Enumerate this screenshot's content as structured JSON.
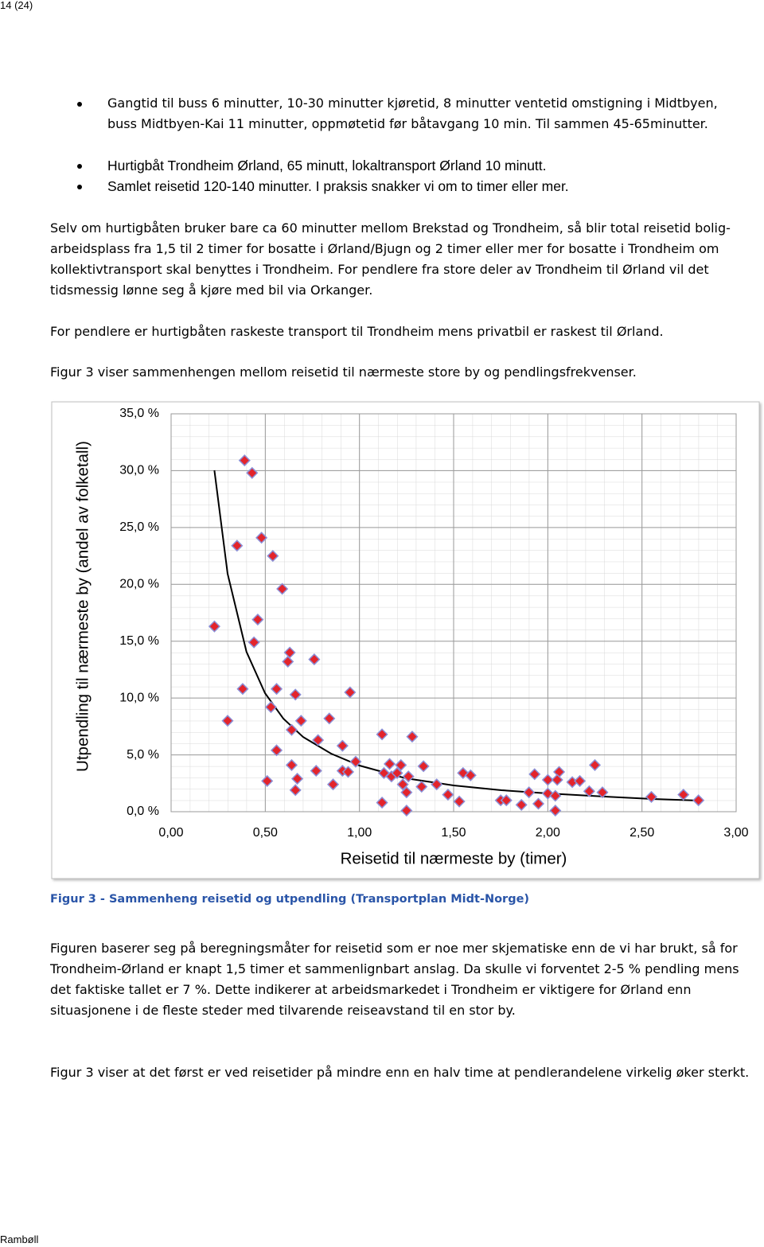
{
  "header": {
    "page": "14 (24)"
  },
  "bullets": [
    "Gangtid til buss 6 minutter, 10-30 minutter kjøretid, 8 minutter ventetid omstigning i Midtbyen, buss Midtbyen-Kai 11 minutter, oppmøtetid før båtavgang 10 min. Til sammen 45-65minutter.",
    "Hurtigbåt Trondheim Ørland, 65 minutt, lokaltransport Ørland 10 minutt.",
    "Samlet reisetid 120-140 minutter. I praksis snakker vi om to timer eller mer."
  ],
  "paragraphs": [
    "Selv om hurtigbåten bruker bare ca 60 minutter mellom Brekstad og Trondheim, så blir total reisetid bolig-arbeidsplass fra 1,5 til 2 timer for bosatte i Ørland/Bjugn og 2 timer eller mer for bosatte i Trondheim om kollektivtransport skal benyttes i Trondheim. For pendlere fra store deler av Trondheim til Ørland vil det tidsmessig lønne seg å kjøre med bil via Orkanger.",
    "For pendlere er hurtigbåten raskeste transport til Trondheim mens privatbil er raskest til Ørland.",
    "Figur 3 viser sammenhengen mellom reisetid til nærmeste store by og pendlingsfrekvenser."
  ],
  "chart_data": {
    "type": "scatter",
    "y_label": "Utpendling til nærmeste by (andel av folketall)",
    "x_label": "Reisetid til nærmeste by (timer)",
    "x": [
      0.39,
      0.43,
      0.35,
      0.48,
      0.54,
      0.59,
      0.23,
      0.46,
      0.44,
      0.63,
      0.62,
      0.76,
      0.38,
      0.56,
      0.66,
      0.95,
      0.3,
      0.53,
      0.69,
      0.84,
      0.64,
      1.12,
      1.28,
      0.56,
      0.78,
      0.91,
      0.98,
      0.64,
      0.77,
      0.91,
      0.94,
      0.67,
      0.51,
      0.86,
      0.66,
      1.16,
      1.22,
      1.34,
      1.13,
      1.17,
      1.2,
      1.26,
      1.23,
      1.33,
      1.25,
      1.41,
      1.47,
      1.55,
      1.59,
      1.53,
      1.12,
      1.25,
      1.75,
      1.78,
      1.86,
      1.9,
      1.93,
      1.95,
      2.0,
      2.06,
      2.05,
      2.0,
      2.04,
      2.04,
      2.13,
      2.17,
      2.25,
      2.22,
      2.29,
      2.55,
      2.72,
      2.8
    ],
    "values": [
      30.9,
      29.8,
      23.4,
      24.1,
      22.5,
      19.6,
      16.3,
      16.9,
      14.9,
      14.0,
      13.2,
      13.4,
      10.8,
      10.8,
      10.3,
      10.5,
      8.0,
      9.2,
      8.0,
      8.2,
      7.2,
      6.8,
      6.6,
      5.4,
      6.3,
      5.8,
      4.4,
      4.1,
      3.6,
      3.6,
      3.5,
      2.9,
      2.7,
      2.4,
      1.9,
      4.2,
      4.1,
      4.0,
      3.4,
      3.1,
      3.4,
      3.1,
      2.4,
      2.2,
      1.7,
      2.4,
      1.5,
      3.4,
      3.2,
      0.9,
      0.8,
      0.1,
      1.0,
      1.0,
      0.6,
      1.7,
      3.3,
      0.7,
      2.8,
      3.5,
      2.8,
      1.6,
      1.4,
      0.1,
      2.6,
      2.7,
      4.1,
      1.8,
      1.7,
      1.3,
      1.5,
      1.0
    ],
    "color": "#e3242b",
    "xlim": [
      0,
      3
    ],
    "ylim": [
      0,
      35
    ],
    "xticks": [
      {
        "value": 0,
        "label": "0,00"
      },
      {
        "value": 0.5,
        "label": "0,50"
      },
      {
        "value": 1,
        "label": "1,00"
      },
      {
        "value": 1.5,
        "label": "1,50"
      },
      {
        "value": 2,
        "label": "2,00"
      },
      {
        "value": 2.5,
        "label": "2,50"
      },
      {
        "value": 3,
        "label": "3,00"
      }
    ],
    "yticks": [
      {
        "value": 0,
        "label": "0,0 %"
      },
      {
        "value": 5,
        "label": "5,0 %"
      },
      {
        "value": 10,
        "label": "10,0 %"
      },
      {
        "value": 15,
        "label": "15,0 %"
      },
      {
        "value": 20,
        "label": "20,0 %"
      },
      {
        "value": 25,
        "label": "25,0 %"
      },
      {
        "value": 30,
        "label": "30,0 %"
      },
      {
        "value": 35,
        "label": "35,0 %"
      }
    ],
    "grid": true
  },
  "caption": "Figur 3 - Sammenheng reisetid og utpendling (Transportplan Midt-Norge)",
  "paragraphs_after": [
    "Figuren baserer seg på beregningsmåter for reisetid som er noe mer skjematiske enn de vi har brukt, så for Trondheim-Ørland er knapt 1,5 timer et sammenlignbart anslag. Da skulle vi forventet 2-5 % pendling mens det faktiske tallet er 7 %. Dette indikerer at arbeidsmarkedet i Trondheim er viktigere for Ørland enn situasjonene i de fleste steder med tilvarende reiseavstand til en stor by.",
    "Figur 3 viser at det først er ved reisetider på mindre enn en halv time at pendlerandelene virkelig øker sterkt."
  ],
  "footer": "Rambøll"
}
